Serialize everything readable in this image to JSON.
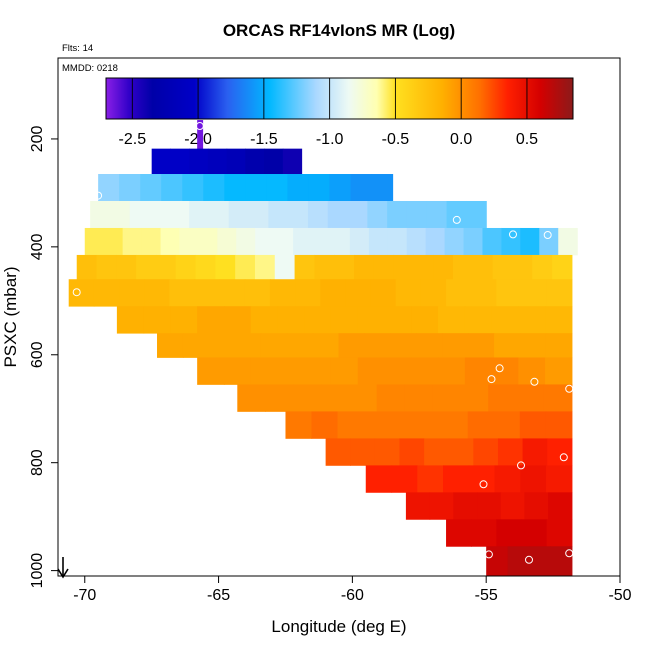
{
  "chart_data": {
    "type": "heatmap",
    "title": "ORCAS RF14vIonS MR (Log)",
    "flights_label": "Flts: 14",
    "mmdd_label": "MMDD: 0218",
    "xlabel": "Longitude (deg E)",
    "ylabel": "PSXC (mbar)",
    "xlim": [
      -71,
      -50
    ],
    "ylim": [
      1010,
      50
    ],
    "x_ticks": [
      -70,
      -65,
      -60,
      -55,
      -50
    ],
    "y_ticks": [
      200,
      400,
      600,
      800,
      1000
    ],
    "colorbar": {
      "range": [
        -2.7,
        0.85
      ],
      "ticks": [
        -2.5,
        -2.0,
        -1.5,
        -1.0,
        -0.5,
        0.0,
        0.5
      ],
      "tick_labels": [
        "-2.5",
        "-2.0",
        "-1.5",
        "-1.0",
        "-0.5",
        "0.0",
        "0.5"
      ]
    },
    "bands": [
      {
        "p_top": 165,
        "p_bot": 218,
        "x_start": -65.8,
        "x_end": -65.6,
        "values": [
          -2.65
        ]
      },
      {
        "p_top": 218,
        "p_bot": 265,
        "x_start": -67.5,
        "x_end": -61.9,
        "values": [
          -2.05,
          -2.05,
          -2.1,
          -2.15,
          -2.2,
          -2.3,
          -2.35,
          -2.4
        ]
      },
      {
        "p_top": 265,
        "p_bot": 315,
        "x_start": -69.5,
        "x_end": -58.5,
        "values": [
          -1.15,
          -1.2,
          -1.25,
          -1.3,
          -1.35,
          -1.4,
          -1.45,
          -1.45,
          -1.45,
          -1.5,
          -1.5,
          -1.55,
          -1.6,
          -1.6
        ]
      },
      {
        "p_top": 315,
        "p_bot": 365,
        "x_start": -69.8,
        "x_end": -55.0,
        "values": [
          -0.8,
          -0.8,
          -0.85,
          -0.85,
          -0.85,
          -0.9,
          -0.9,
          -0.95,
          -0.95,
          -1.0,
          -1.0,
          -1.05,
          -1.1,
          -1.1,
          -1.15,
          -1.2,
          -1.2,
          -1.2,
          -1.25,
          -1.25
        ]
      },
      {
        "p_top": 365,
        "p_bot": 415,
        "x_start": -70.0,
        "x_end": -51.6,
        "values": [
          -0.55,
          -0.55,
          -0.6,
          -0.6,
          -0.65,
          -0.7,
          -0.7,
          -0.75,
          -0.8,
          -0.85,
          -0.85,
          -0.9,
          -0.9,
          -0.9,
          -0.95,
          -1.0,
          -1.0,
          -1.05,
          -1.1,
          -1.15,
          -1.2,
          -1.3,
          -1.35,
          -1.4,
          -1.2,
          -0.8
        ]
      },
      {
        "p_top": 415,
        "p_bot": 460,
        "x_start": -70.3,
        "x_end": -51.8,
        "values": [
          -0.25,
          -0.3,
          -0.3,
          -0.35,
          -0.35,
          -0.4,
          -0.45,
          -0.5,
          -0.55,
          -0.6,
          -0.85,
          -0.3,
          -0.25,
          -0.25,
          -0.2,
          -0.2,
          -0.2,
          -0.2,
          -0.2,
          -0.25,
          -0.25,
          -0.3,
          -0.3,
          -0.35,
          -0.4
        ]
      },
      {
        "p_top": 460,
        "p_bot": 510,
        "x_start": -70.6,
        "x_end": -51.8,
        "values": [
          -0.2,
          -0.2,
          -0.2,
          -0.2,
          -0.25,
          -0.25,
          -0.25,
          -0.25,
          -0.2,
          -0.2,
          -0.15,
          -0.15,
          -0.15,
          -0.2,
          -0.2,
          -0.25,
          -0.25,
          -0.3,
          -0.3,
          -0.3
        ]
      },
      {
        "p_top": 510,
        "p_bot": 560,
        "x_start": -68.8,
        "x_end": -51.8,
        "values": [
          -0.15,
          -0.15,
          -0.15,
          -0.1,
          -0.1,
          -0.15,
          -0.15,
          -0.15,
          -0.15,
          -0.15,
          -0.15,
          -0.15,
          -0.2,
          -0.2,
          -0.2,
          -0.2,
          -0.2
        ]
      },
      {
        "p_top": 560,
        "p_bot": 605,
        "x_start": -67.3,
        "x_end": -51.8,
        "values": [
          -0.1,
          -0.1,
          -0.1,
          -0.1,
          -0.1,
          -0.1,
          -0.1,
          -0.05,
          -0.05,
          -0.05,
          -0.05,
          -0.05,
          -0.05,
          -0.1,
          -0.1,
          -0.1
        ]
      },
      {
        "p_top": 605,
        "p_bot": 655,
        "x_start": -65.8,
        "x_end": -51.8,
        "values": [
          -0.05,
          -0.05,
          -0.05,
          -0.05,
          -0.05,
          -0.05,
          0.0,
          0.0,
          0.0,
          0.0,
          0.05,
          0.05,
          0.0,
          -0.05
        ]
      },
      {
        "p_top": 655,
        "p_bot": 705,
        "x_start": -64.3,
        "x_end": -51.8,
        "values": [
          0.0,
          0.0,
          0.0,
          0.0,
          0.0,
          0.05,
          0.05,
          0.05,
          0.05,
          0.1,
          0.1,
          0.1
        ]
      },
      {
        "p_top": 705,
        "p_bot": 755,
        "x_start": -62.5,
        "x_end": -51.8,
        "values": [
          0.1,
          0.15,
          0.1,
          0.1,
          0.1,
          0.1,
          0.1,
          0.15,
          0.15,
          0.2,
          0.2
        ]
      },
      {
        "p_top": 755,
        "p_bot": 805,
        "x_start": -61.0,
        "x_end": -51.8,
        "values": [
          0.2,
          0.2,
          0.2,
          0.25,
          0.2,
          0.2,
          0.25,
          0.3,
          0.4,
          0.35
        ]
      },
      {
        "p_top": 805,
        "p_bot": 855,
        "x_start": -59.5,
        "x_end": -51.8,
        "values": [
          0.35,
          0.35,
          0.3,
          0.35,
          0.35,
          0.4,
          0.45,
          0.4
        ]
      },
      {
        "p_top": 855,
        "p_bot": 905,
        "x_start": -58.0,
        "x_end": -51.8,
        "values": [
          0.45,
          0.45,
          0.5,
          0.5,
          0.45,
          0.5,
          0.55
        ]
      },
      {
        "p_top": 905,
        "p_bot": 955,
        "x_start": -56.5,
        "x_end": -51.8,
        "values": [
          0.55,
          0.55,
          0.6,
          0.6,
          0.55
        ]
      },
      {
        "p_top": 955,
        "p_bot": 1010,
        "x_start": -55.0,
        "x_end": -51.8,
        "values": [
          0.65,
          0.7,
          0.7,
          0.7
        ]
      }
    ],
    "points": [
      {
        "x": -65.7,
        "y": 176
      },
      {
        "x": -69.5,
        "y": 305
      },
      {
        "x": -56.1,
        "y": 350
      },
      {
        "x": -54.0,
        "y": 377
      },
      {
        "x": -52.7,
        "y": 378
      },
      {
        "x": -70.3,
        "y": 484
      },
      {
        "x": -54.5,
        "y": 625
      },
      {
        "x": -54.8,
        "y": 645
      },
      {
        "x": -53.2,
        "y": 650
      },
      {
        "x": -51.9,
        "y": 663
      },
      {
        "x": -53.7,
        "y": 805
      },
      {
        "x": -52.1,
        "y": 790
      },
      {
        "x": -55.1,
        "y": 840
      },
      {
        "x": -54.9,
        "y": 970
      },
      {
        "x": -53.4,
        "y": 980
      },
      {
        "x": -51.9,
        "y": 968
      }
    ]
  }
}
